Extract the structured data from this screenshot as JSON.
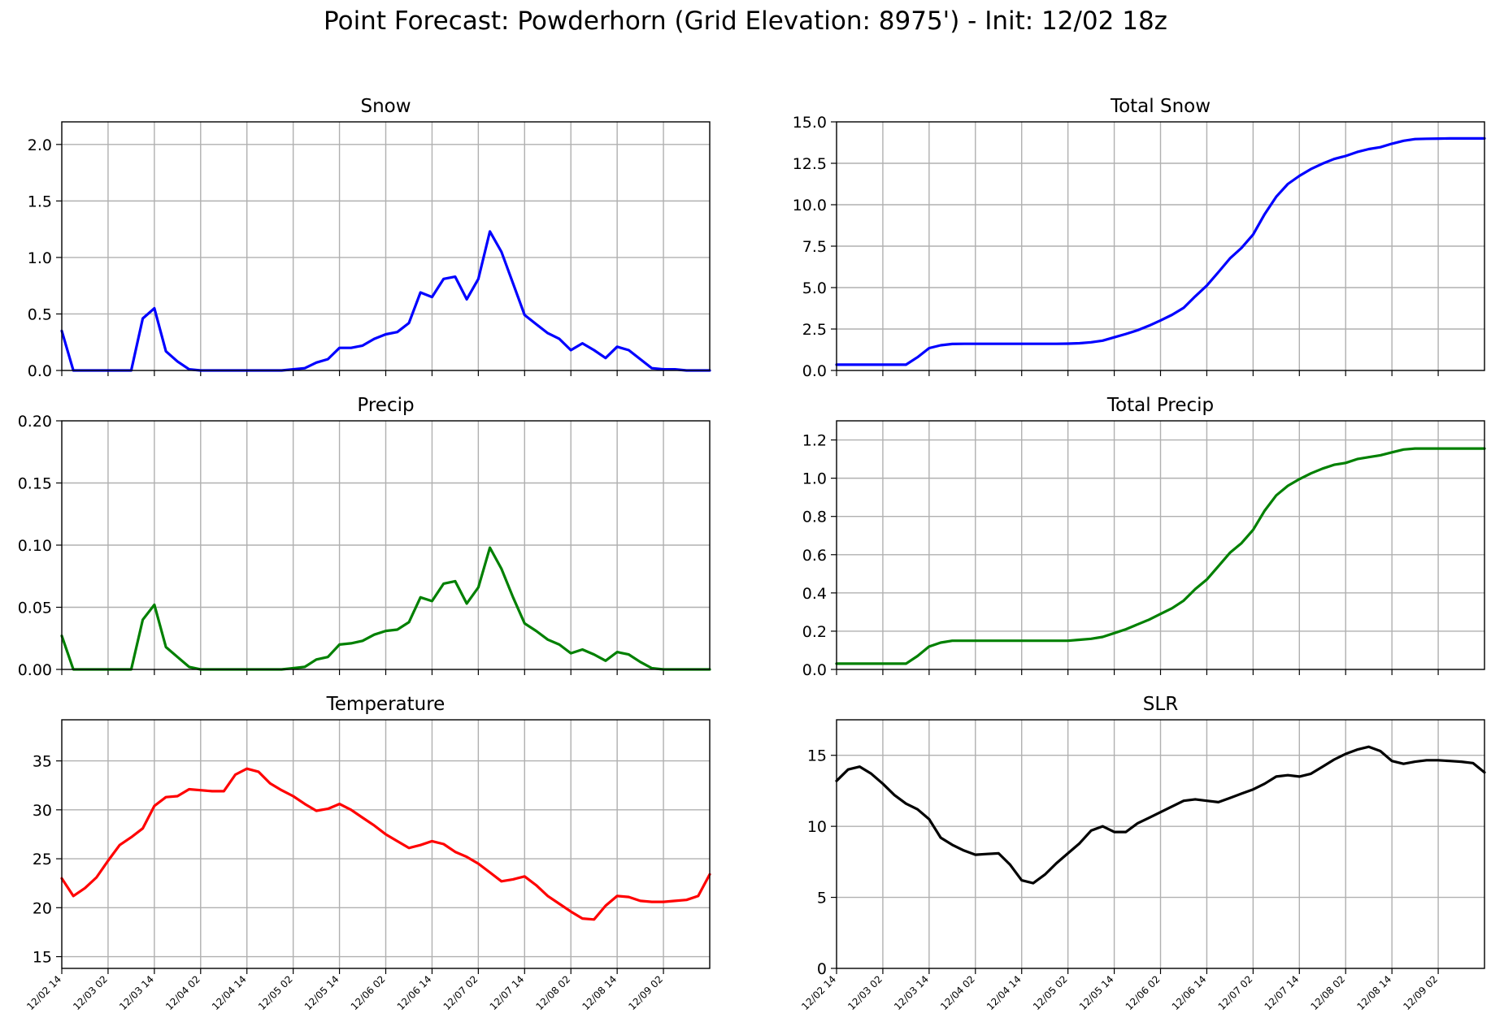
{
  "suptitle": "Point Forecast: Powderhorn (Grid Elevation: 8975') - Init: 12/02 18z",
  "x_tick_labels": [
    "12/02 14",
    "12/03 02",
    "12/03 14",
    "12/04 02",
    "12/04 14",
    "12/05 02",
    "12/05 14",
    "12/06 02",
    "12/06 14",
    "12/07 02",
    "12/07 14",
    "12/08 02",
    "12/08 14",
    "12/09 02"
  ],
  "chart_data": [
    {
      "type": "line",
      "title": "Snow",
      "color": "#0000ff",
      "ylim": [
        0,
        2.2
      ],
      "yticks": [
        "0.0",
        "0.5",
        "1.0",
        "1.5",
        "2.0"
      ],
      "ytick_values": [
        0,
        0.5,
        1.0,
        1.5,
        2.0
      ],
      "show_x_labels": false,
      "grid": true,
      "values": [
        0.35,
        0,
        0,
        0,
        0,
        0,
        0,
        0.46,
        0.55,
        0.17,
        0.08,
        0.01,
        0,
        0,
        0,
        0,
        0,
        0,
        0,
        0,
        0.01,
        0.02,
        0.07,
        0.1,
        0.2,
        0.2,
        0.22,
        0.28,
        0.32,
        0.34,
        0.42,
        0.69,
        0.65,
        0.81,
        0.83,
        0.63,
        0.81,
        1.23,
        1.05,
        0.77,
        0.49,
        0.41,
        0.33,
        0.28,
        0.18,
        0.24,
        0.18,
        0.11,
        0.21,
        0.18,
        0.1,
        0.02,
        0.01,
        0.01,
        0,
        0,
        0
      ]
    },
    {
      "type": "line",
      "title": "Total Snow",
      "color": "#0000ff",
      "ylim": [
        0,
        15
      ],
      "yticks": [
        "0.0",
        "2.5",
        "5.0",
        "7.5",
        "10.0",
        "12.5",
        "15.0"
      ],
      "ytick_values": [
        0,
        2.5,
        5.0,
        7.5,
        10.0,
        12.5,
        15.0
      ],
      "show_x_labels": false,
      "grid": true,
      "values": [
        0.35,
        0.35,
        0.35,
        0.35,
        0.35,
        0.35,
        0.35,
        0.8,
        1.35,
        1.52,
        1.6,
        1.61,
        1.61,
        1.61,
        1.61,
        1.61,
        1.61,
        1.61,
        1.61,
        1.61,
        1.62,
        1.64,
        1.7,
        1.8,
        2.0,
        2.2,
        2.42,
        2.7,
        3.02,
        3.36,
        3.78,
        4.47,
        5.12,
        5.93,
        6.76,
        7.39,
        8.2,
        9.43,
        10.48,
        11.25,
        11.74,
        12.15,
        12.48,
        12.76,
        12.94,
        13.18,
        13.36,
        13.47,
        13.68,
        13.86,
        13.96,
        13.98,
        13.99,
        14.0,
        14.0,
        14.0,
        14.0
      ]
    },
    {
      "type": "line",
      "title": "Precip",
      "color": "#008000",
      "ylim": [
        0,
        0.2
      ],
      "yticks": [
        "0.00",
        "0.05",
        "0.10",
        "0.15",
        "0.20"
      ],
      "ytick_values": [
        0,
        0.05,
        0.1,
        0.15,
        0.2
      ],
      "show_x_labels": false,
      "grid": true,
      "values": [
        0.027,
        0,
        0,
        0,
        0,
        0,
        0,
        0.04,
        0.052,
        0.018,
        0.01,
        0.002,
        0,
        0,
        0,
        0,
        0,
        0,
        0,
        0,
        0.001,
        0.002,
        0.008,
        0.01,
        0.02,
        0.021,
        0.023,
        0.028,
        0.031,
        0.032,
        0.038,
        0.058,
        0.055,
        0.069,
        0.071,
        0.053,
        0.066,
        0.098,
        0.081,
        0.058,
        0.037,
        0.031,
        0.024,
        0.02,
        0.013,
        0.016,
        0.012,
        0.007,
        0.014,
        0.012,
        0.006,
        0.001,
        0,
        0,
        0,
        0,
        0
      ]
    },
    {
      "type": "line",
      "title": "Total Precip",
      "color": "#008000",
      "ylim": [
        0,
        1.3
      ],
      "yticks": [
        "0.0",
        "0.2",
        "0.4",
        "0.6",
        "0.8",
        "1.0",
        "1.2"
      ],
      "ytick_values": [
        0,
        0.2,
        0.4,
        0.6,
        0.8,
        1.0,
        1.2
      ],
      "show_x_labels": false,
      "grid": true,
      "values": [
        0.03,
        0.03,
        0.03,
        0.03,
        0.03,
        0.03,
        0.03,
        0.07,
        0.12,
        0.14,
        0.15,
        0.15,
        0.15,
        0.15,
        0.15,
        0.15,
        0.15,
        0.15,
        0.15,
        0.15,
        0.15,
        0.155,
        0.16,
        0.17,
        0.19,
        0.21,
        0.235,
        0.26,
        0.29,
        0.32,
        0.36,
        0.42,
        0.47,
        0.54,
        0.61,
        0.66,
        0.73,
        0.83,
        0.91,
        0.96,
        0.995,
        1.025,
        1.05,
        1.07,
        1.08,
        1.1,
        1.11,
        1.12,
        1.135,
        1.15,
        1.155,
        1.155,
        1.155,
        1.155,
        1.155,
        1.155,
        1.155
      ]
    },
    {
      "type": "line",
      "title": "Temperature",
      "color": "#ff0000",
      "ylim": [
        13.8,
        39.2
      ],
      "yticks": [
        "15",
        "20",
        "25",
        "30",
        "35"
      ],
      "ytick_values": [
        15,
        20,
        25,
        30,
        35
      ],
      "show_x_labels": true,
      "grid": true,
      "values": [
        23.0,
        21.2,
        22.0,
        23.1,
        24.8,
        26.4,
        27.2,
        28.1,
        30.4,
        31.3,
        31.4,
        32.1,
        32.0,
        31.9,
        31.9,
        33.6,
        34.2,
        33.9,
        32.7,
        32.0,
        31.4,
        30.6,
        29.9,
        30.1,
        30.6,
        30.0,
        29.2,
        28.4,
        27.5,
        26.8,
        26.1,
        26.4,
        26.8,
        26.5,
        25.7,
        25.2,
        24.5,
        23.6,
        22.7,
        22.9,
        23.2,
        22.3,
        21.2,
        20.4,
        19.6,
        18.9,
        18.8,
        20.2,
        21.2,
        21.1,
        20.7,
        20.6,
        20.6,
        20.7,
        20.8,
        21.2,
        23.4
      ]
    },
    {
      "type": "line",
      "title": "SLR",
      "color": "#000000",
      "ylim": [
        0,
        17.5
      ],
      "yticks": [
        "0",
        "5",
        "10",
        "15"
      ],
      "ytick_values": [
        0,
        5,
        10,
        15
      ],
      "show_x_labels": true,
      "grid": true,
      "values": [
        13.2,
        14.0,
        14.2,
        13.7,
        13.0,
        12.2,
        11.6,
        11.2,
        10.5,
        9.2,
        8.7,
        8.3,
        8.0,
        8.05,
        8.1,
        7.3,
        6.2,
        6.0,
        6.6,
        7.4,
        8.1,
        8.8,
        9.7,
        10.0,
        9.6,
        9.6,
        10.2,
        10.6,
        11.0,
        11.4,
        11.8,
        11.9,
        11.8,
        11.7,
        12.0,
        12.3,
        12.6,
        13.0,
        13.5,
        13.6,
        13.5,
        13.7,
        14.2,
        14.7,
        15.1,
        15.4,
        15.6,
        15.3,
        14.6,
        14.4,
        14.55,
        14.65,
        14.65,
        14.6,
        14.55,
        14.45,
        13.8
      ]
    }
  ]
}
